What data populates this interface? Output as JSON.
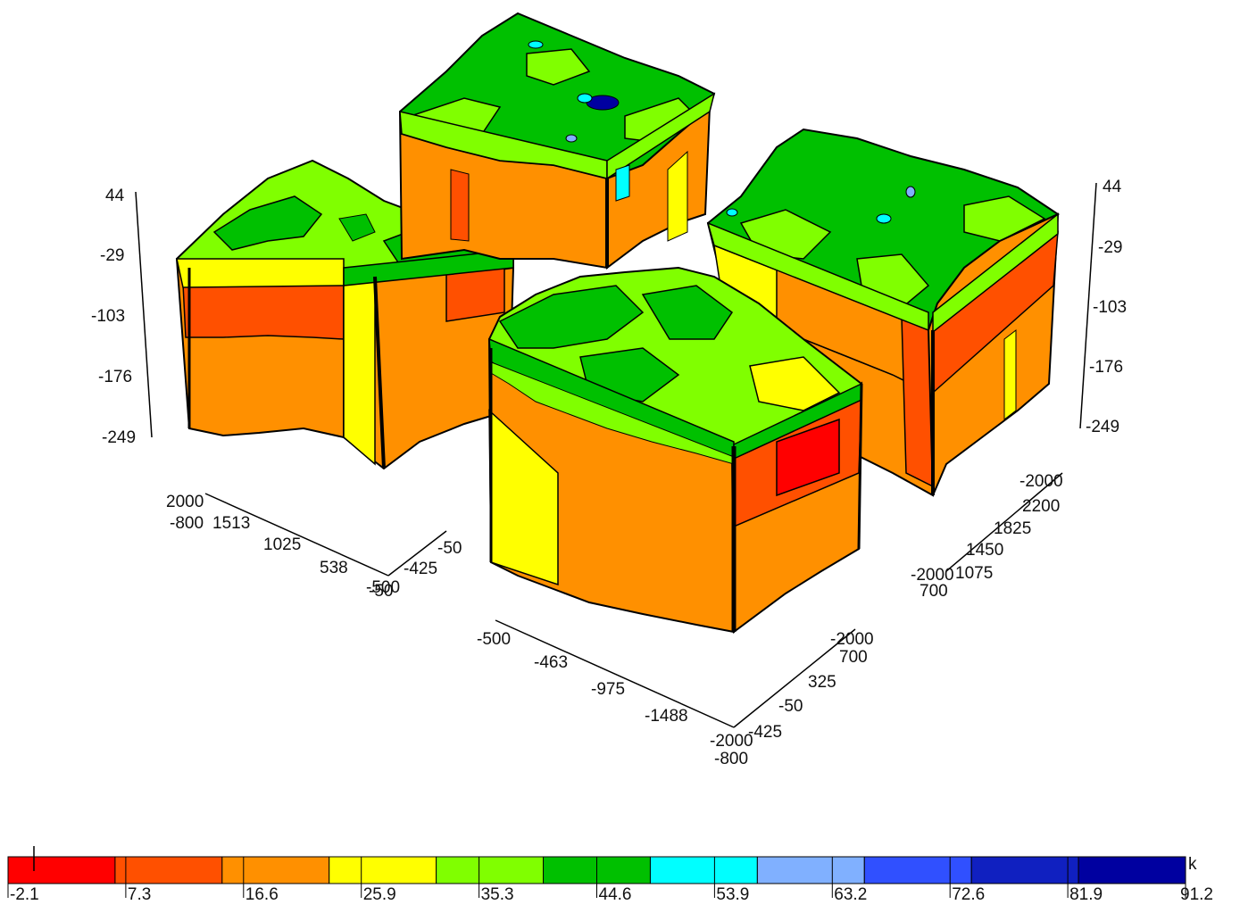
{
  "figure": {
    "vertical_axes": [
      {
        "id": "left-z-axis",
        "ticks": [
          "44",
          "-29",
          "-103",
          "-176",
          "-249"
        ]
      },
      {
        "id": "right-z-axis",
        "ticks": [
          "44",
          "-29",
          "-103",
          "-176",
          "-249"
        ]
      }
    ],
    "horizontal_axes": [
      {
        "id": "left-block-x-axis",
        "ticks": [
          "2000",
          "1513",
          "1025",
          "538",
          "-50"
        ],
        "extra": [
          "-800"
        ]
      },
      {
        "id": "left-block-y-axis",
        "ticks": [
          "-50",
          "-425",
          "-500"
        ]
      },
      {
        "id": "front-block-x-axis",
        "ticks": [
          "-500",
          "-463",
          "-975",
          "-1488",
          "-2000"
        ],
        "extra": [
          "-800"
        ]
      },
      {
        "id": "front-block-y-axis",
        "ticks": [
          "-2000",
          "700",
          "325",
          "-50",
          "-425"
        ]
      },
      {
        "id": "right-block-y-axis",
        "ticks": [
          "-2000",
          "2200",
          "1825",
          "1450",
          "1075",
          "-2000",
          "700"
        ]
      }
    ],
    "colorbar": {
      "unit": "k",
      "ticks": [
        "-2.1",
        "7.3",
        "16.6",
        "25.9",
        "35.3",
        "44.6",
        "53.9",
        "63.2",
        "72.6",
        "81.9",
        "91.2"
      ],
      "colors": [
        "#ff0000",
        "#ff5000",
        "#ff9000",
        "#ffff00",
        "#80ff00",
        "#00c000",
        "#00ffff",
        "#80b0ff",
        "#3050ff",
        "#1020c0",
        "#0000a0"
      ]
    },
    "palette": {
      "surface_green": "#00c000",
      "surface_light_green": "#80ff00",
      "body_orange": "#ff9000",
      "band_red_orange": "#ff5000",
      "band_yellow": "#ffff00",
      "pool_cyan": "#00ffff",
      "pool_navy": "#0000a0"
    }
  }
}
